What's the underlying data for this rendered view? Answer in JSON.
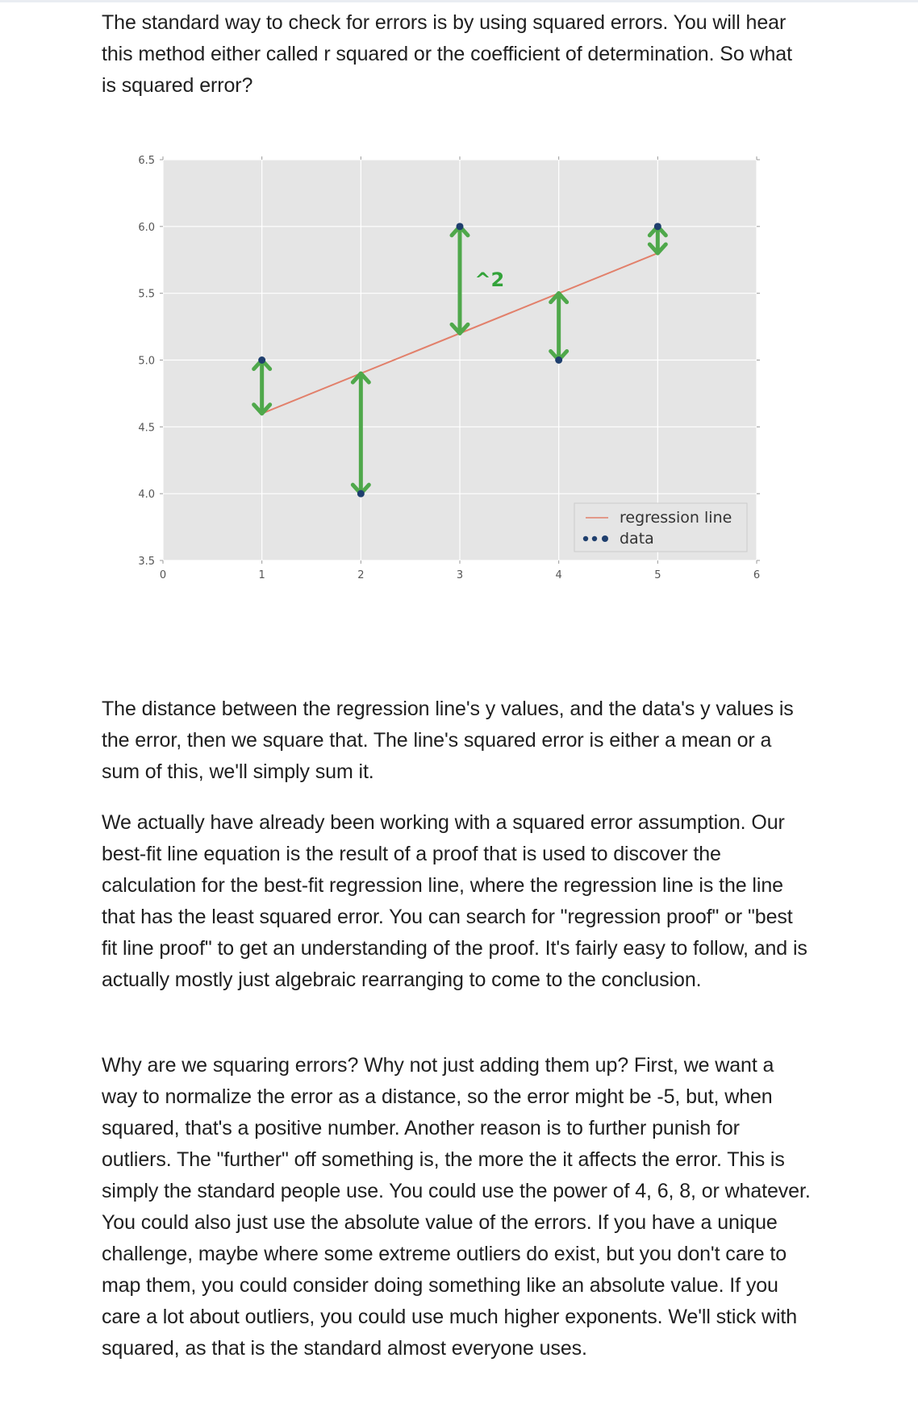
{
  "article": {
    "paragraphs": [
      "The standard way to check for errors is by using squared errors. You will hear this method either called r squared or the coefficient of determination. So what is squared error?",
      "The distance between the regression line's y values, and the data's y values is the error, then we square that. The line's squared error is either a mean or a sum of this, we'll simply sum it.",
      "We actually have already been working with a squared error assumption. Our best-fit line equation is the result of a proof that is used to discover the calculation for the best-fit regression line, where the regression line is the line that has the least squared error. You can search for \"regression proof\" or \"best fit line proof\" to get an understanding of the proof. It's fairly easy to follow, and is actually mostly just algebraic rearranging to come to the conclusion.",
      "Why are we squaring errors? Why not just adding them up? First, we want a way to normalize the error as a distance, so the error might be -5, but, when squared, that's a positive number. Another reason is to further punish for outliers. The \"further\" off something is, the more the it affects the error. This is simply the standard people use. You could use the power of 4, 6, 8, or whatever. You could also just use the absolute value of the errors. If you have a unique challenge, maybe where some extreme outliers do exist, but you don't care to map them, you could consider doing something like an absolute value. If you care a lot about outliers, you could use much higher exponents. We'll stick with squared, as that is the standard almost everyone uses."
    ]
  },
  "chart_data": {
    "type": "scatter",
    "title": "",
    "xlabel": "",
    "ylabel": "",
    "xlim": [
      0,
      6
    ],
    "ylim": [
      3.5,
      6.5
    ],
    "grid": true,
    "legend_position": "lower-right",
    "x_tick_labels": [
      "0",
      "1",
      "2",
      "3",
      "4",
      "5",
      "6"
    ],
    "y_tick_labels": [
      "3.5",
      "4.0",
      "4.5",
      "5.0",
      "5.5",
      "6.0",
      "6.5"
    ],
    "x_ticks": [
      0,
      1,
      2,
      3,
      4,
      5,
      6
    ],
    "y_ticks": [
      3.5,
      4.0,
      4.5,
      5.0,
      5.5,
      6.0,
      6.5
    ],
    "series": [
      {
        "name": "regression line",
        "kind": "line",
        "color": "#e2806b",
        "x": [
          1,
          5
        ],
        "y": [
          4.6,
          5.8
        ]
      },
      {
        "name": "data",
        "kind": "scatter",
        "color": "#1f3f6e",
        "x": [
          1,
          2,
          3,
          4,
          5
        ],
        "y": [
          5.0,
          4.0,
          6.0,
          5.0,
          6.0
        ]
      }
    ],
    "annotations": {
      "error_arrows_color": "#4fa84b",
      "error_arrows": [
        {
          "x": 1,
          "from": 4.6,
          "to": 5.0
        },
        {
          "x": 2,
          "from": 4.9,
          "to": 4.0
        },
        {
          "x": 3,
          "from": 5.2,
          "to": 6.0
        },
        {
          "x": 4,
          "from": 5.5,
          "to": 5.0
        },
        {
          "x": 5,
          "from": 5.8,
          "to": 6.0
        }
      ],
      "handwritten_label": {
        "text": "^2",
        "x": 3.3,
        "y": 5.6
      }
    }
  }
}
